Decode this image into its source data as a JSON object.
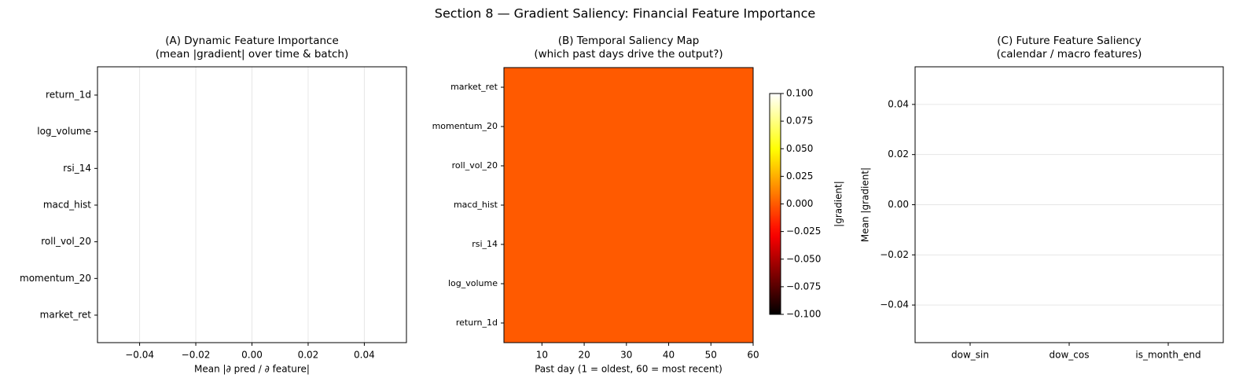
{
  "suptitle": "Section 8 — Gradient Saliency: Financial Feature Importance",
  "chart_data": [
    {
      "type": "barh",
      "title": "(A) Dynamic Feature Importance\n(mean |gradient| over time & batch)",
      "categories": [
        "market_ret",
        "momentum_20",
        "roll_vol_20",
        "macd_hist",
        "rsi_14",
        "log_volume",
        "return_1d"
      ],
      "values": [
        0,
        0,
        0,
        0,
        0,
        0,
        0
      ],
      "color": "#4c72b0",
      "xlabel": "Mean |∂ pred / ∂ feature|",
      "xlim": [
        -0.055,
        0.055
      ],
      "xticks": [
        {
          "value": -0.04,
          "label": "−0.04"
        },
        {
          "value": -0.02,
          "label": "−0.02"
        },
        {
          "value": 0,
          "label": "0.00"
        },
        0.02,
        0.04
      ],
      "grid": "x"
    },
    {
      "type": "heatmap",
      "title": "(B) Temporal Saliency Map\n(which past days drive the output?)",
      "rows": [
        "market_ret",
        "momentum_20",
        "roll_vol_20",
        "macd_hist",
        "rsi_14",
        "log_volume",
        "return_1d"
      ],
      "values": [
        [
          0,
          0,
          0,
          0,
          0,
          0,
          0,
          0,
          0,
          0,
          0,
          0,
          0,
          0,
          0,
          0,
          0,
          0,
          0,
          0,
          0,
          0,
          0,
          0,
          0,
          0,
          0,
          0,
          0,
          0,
          0,
          0,
          0,
          0,
          0,
          0,
          0,
          0,
          0,
          0,
          0,
          0,
          0,
          0,
          0,
          0,
          0,
          0,
          0,
          0,
          0,
          0,
          0,
          0,
          0,
          0,
          0,
          0,
          0,
          0
        ],
        [
          0,
          0,
          0,
          0,
          0,
          0,
          0,
          0,
          0,
          0,
          0,
          0,
          0,
          0,
          0,
          0,
          0,
          0,
          0,
          0,
          0,
          0,
          0,
          0,
          0,
          0,
          0,
          0,
          0,
          0,
          0,
          0,
          0,
          0,
          0,
          0,
          0,
          0,
          0,
          0,
          0,
          0,
          0,
          0,
          0,
          0,
          0,
          0,
          0,
          0,
          0,
          0,
          0,
          0,
          0,
          0,
          0,
          0,
          0,
          0
        ],
        [
          0,
          0,
          0,
          0,
          0,
          0,
          0,
          0,
          0,
          0,
          0,
          0,
          0,
          0,
          0,
          0,
          0,
          0,
          0,
          0,
          0,
          0,
          0,
          0,
          0,
          0,
          0,
          0,
          0,
          0,
          0,
          0,
          0,
          0,
          0,
          0,
          0,
          0,
          0,
          0,
          0,
          0,
          0,
          0,
          0,
          0,
          0,
          0,
          0,
          0,
          0,
          0,
          0,
          0,
          0,
          0,
          0,
          0,
          0,
          0
        ],
        [
          0,
          0,
          0,
          0,
          0,
          0,
          0,
          0,
          0,
          0,
          0,
          0,
          0,
          0,
          0,
          0,
          0,
          0,
          0,
          0,
          0,
          0,
          0,
          0,
          0,
          0,
          0,
          0,
          0,
          0,
          0,
          0,
          0,
          0,
          0,
          0,
          0,
          0,
          0,
          0,
          0,
          0,
          0,
          0,
          0,
          0,
          0,
          0,
          0,
          0,
          0,
          0,
          0,
          0,
          0,
          0,
          0,
          0,
          0,
          0
        ],
        [
          0,
          0,
          0,
          0,
          0,
          0,
          0,
          0,
          0,
          0,
          0,
          0,
          0,
          0,
          0,
          0,
          0,
          0,
          0,
          0,
          0,
          0,
          0,
          0,
          0,
          0,
          0,
          0,
          0,
          0,
          0,
          0,
          0,
          0,
          0,
          0,
          0,
          0,
          0,
          0,
          0,
          0,
          0,
          0,
          0,
          0,
          0,
          0,
          0,
          0,
          0,
          0,
          0,
          0,
          0,
          0,
          0,
          0,
          0,
          0
        ],
        [
          0,
          0,
          0,
          0,
          0,
          0,
          0,
          0,
          0,
          0,
          0,
          0,
          0,
          0,
          0,
          0,
          0,
          0,
          0,
          0,
          0,
          0,
          0,
          0,
          0,
          0,
          0,
          0,
          0,
          0,
          0,
          0,
          0,
          0,
          0,
          0,
          0,
          0,
          0,
          0,
          0,
          0,
          0,
          0,
          0,
          0,
          0,
          0,
          0,
          0,
          0,
          0,
          0,
          0,
          0,
          0,
          0,
          0,
          0,
          0
        ],
        [
          0,
          0,
          0,
          0,
          0,
          0,
          0,
          0,
          0,
          0,
          0,
          0,
          0,
          0,
          0,
          0,
          0,
          0,
          0,
          0,
          0,
          0,
          0,
          0,
          0,
          0,
          0,
          0,
          0,
          0,
          0,
          0,
          0,
          0,
          0,
          0,
          0,
          0,
          0,
          0,
          0,
          0,
          0,
          0,
          0,
          0,
          0,
          0,
          0,
          0,
          0,
          0,
          0,
          0,
          0,
          0,
          0,
          0,
          0,
          0
        ]
      ],
      "colormap": "hot",
      "xlabel": "Past day (1 = oldest, 60 = most recent)",
      "xlim": [
        1,
        60
      ],
      "xticks": [
        10,
        20,
        30,
        40,
        50,
        60
      ],
      "colorbar_label": "|gradient|",
      "clim": [
        -0.1,
        0.1
      ],
      "cticks": [
        {
          "value": -0.1,
          "label": "−0.100"
        },
        {
          "value": -0.075,
          "label": "−0.075"
        },
        {
          "value": -0.05,
          "label": "−0.050"
        },
        {
          "value": -0.025,
          "label": "−0.025"
        },
        {
          "value": 0,
          "label": "0.000"
        },
        {
          "value": 0.025,
          "label": "0.025"
        },
        {
          "value": 0.05,
          "label": "0.050"
        },
        {
          "value": 0.075,
          "label": "0.075"
        },
        {
          "value": 0.1,
          "label": "0.100"
        }
      ]
    },
    {
      "type": "bar",
      "title": "(C) Future Feature Saliency\n(calendar / macro features)",
      "categories": [
        "dow_sin",
        "dow_cos",
        "is_month_end"
      ],
      "values": [
        0,
        0,
        0
      ],
      "color": "#dd8452",
      "ylabel": "Mean |gradient|",
      "ylim": [
        -0.055,
        0.055
      ],
      "yticks": [
        {
          "value": -0.04,
          "label": "−0.04"
        },
        {
          "value": -0.02,
          "label": "−0.02"
        },
        {
          "value": 0,
          "label": "0.00"
        },
        0.02,
        0.04
      ],
      "grid": "y"
    }
  ]
}
